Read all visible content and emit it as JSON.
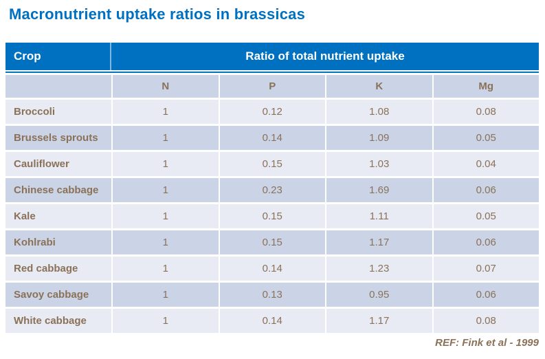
{
  "page": {
    "title": "Macronutrient uptake ratios in brassicas",
    "footer_ref": "REF: Fink et al - 1999"
  },
  "table": {
    "header": {
      "crop_label": "Crop",
      "group_label": "Ratio of total nutrient uptake"
    },
    "columns": [
      "N",
      "P",
      "K",
      "Mg"
    ],
    "rows": [
      {
        "crop": "Broccoli",
        "values": [
          "1",
          "0.12",
          "1.08",
          "0.08"
        ]
      },
      {
        "crop": "Brussels sprouts",
        "values": [
          "1",
          "0.14",
          "1.09",
          "0.05"
        ]
      },
      {
        "crop": "Cauliflower",
        "values": [
          "1",
          "0.15",
          "1.03",
          "0.04"
        ]
      },
      {
        "crop": "Chinese cabbage",
        "values": [
          "1",
          "0.23",
          "1.69",
          "0.06"
        ]
      },
      {
        "crop": "Kale",
        "values": [
          "1",
          "0.15",
          "1.11",
          "0.05"
        ]
      },
      {
        "crop": "Kohlrabi",
        "values": [
          "1",
          "0.15",
          "1.17",
          "0.06"
        ]
      },
      {
        "crop": "Red cabbage",
        "values": [
          "1",
          "0.14",
          "1.23",
          "0.07"
        ]
      },
      {
        "crop": "Savoy cabbage",
        "values": [
          "1",
          "0.13",
          "0.95",
          "0.06"
        ]
      },
      {
        "crop": "White cabbage",
        "values": [
          "1",
          "0.14",
          "1.17",
          "0.08"
        ]
      }
    ]
  },
  "colors": {
    "title_text": "#0070C0",
    "header_bg": "#0071C1",
    "header_text": "#FFFFFF",
    "row_light_bg": "#E8EBF4",
    "row_dark_bg": "#CBD4E6",
    "body_text": "#8A7158"
  }
}
